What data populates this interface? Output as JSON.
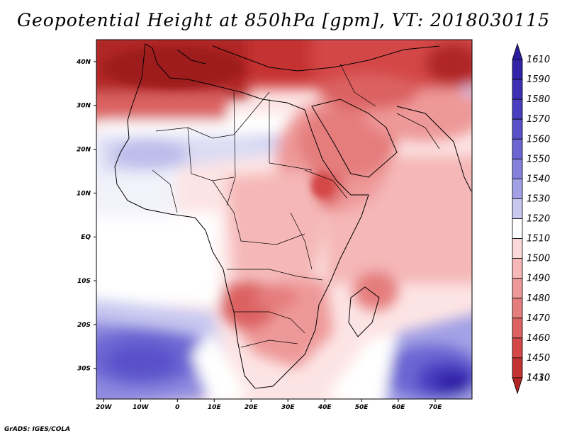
{
  "title": "Geopotential Height at 850hPa [gpm], VT: 2018030115",
  "footer": "GrADS: IGES/COLA",
  "map": {
    "variable": "Geopotential Height at 850hPa",
    "units": "gpm",
    "valid_time": "2018030115",
    "lon_range": [
      -22,
      80
    ],
    "lat_range": [
      -37,
      45
    ],
    "lat_ticks": [
      {
        "value": 40,
        "label": "40N"
      },
      {
        "value": 30,
        "label": "30N"
      },
      {
        "value": 20,
        "label": "20N"
      },
      {
        "value": 10,
        "label": "10N"
      },
      {
        "value": 0,
        "label": "EQ"
      },
      {
        "value": -10,
        "label": "10S"
      },
      {
        "value": -20,
        "label": "20S"
      },
      {
        "value": -30,
        "label": "30S"
      }
    ],
    "lon_ticks": [
      {
        "value": -20,
        "label": "20W"
      },
      {
        "value": -10,
        "label": "10W"
      },
      {
        "value": 0,
        "label": "0"
      },
      {
        "value": 10,
        "label": "10E"
      },
      {
        "value": 20,
        "label": "20E"
      },
      {
        "value": 30,
        "label": "30E"
      },
      {
        "value": 40,
        "label": "40E"
      },
      {
        "value": 50,
        "label": "50E"
      },
      {
        "value": 60,
        "label": "60E"
      },
      {
        "value": 70,
        "label": "70E"
      }
    ]
  },
  "colorbar": {
    "levels": [
      {
        "label": "1610",
        "color": "#2a1c9e"
      },
      {
        "label": "1590",
        "color": "#3224a8"
      },
      {
        "label": "1580",
        "color": "#3d30b5"
      },
      {
        "label": "1570",
        "color": "#4a3ec0"
      },
      {
        "label": "1560",
        "color": "#5a51ca"
      },
      {
        "label": "1550",
        "color": "#6c66d3"
      },
      {
        "label": "1540",
        "color": "#8480dc"
      },
      {
        "label": "1530",
        "color": "#a3a1e6"
      },
      {
        "label": "1520",
        "color": "#c8c8f0"
      },
      {
        "label": "1510",
        "color": "#ffffff"
      },
      {
        "label": "1500",
        "color": "#fbd9d9"
      },
      {
        "label": "1490",
        "color": "#f5b7b7"
      },
      {
        "label": "1480",
        "color": "#ee9999"
      },
      {
        "label": "1470",
        "color": "#e57d7d"
      },
      {
        "label": "1460",
        "color": "#dc6262"
      },
      {
        "label": "1450",
        "color": "#d44747"
      },
      {
        "label": "1430",
        "color": "#c53232"
      },
      {
        "label": "1410",
        "color": "#b02525"
      }
    ]
  }
}
